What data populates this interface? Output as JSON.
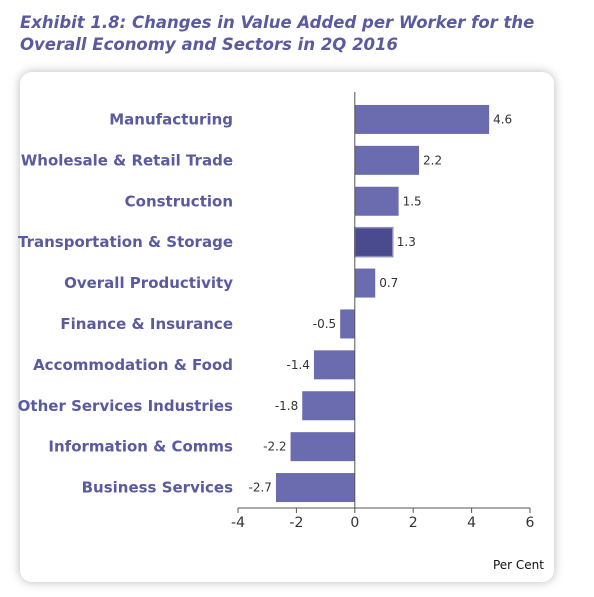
{
  "title": "Exhibit 1.8: Changes in Value Added per Worker for the Overall Economy and Sectors in 2Q 2016",
  "colors": {
    "bar": "#6b6bb0",
    "bar_highlight": "#4a4a8e",
    "label": "#5a5aa0",
    "axis": "#555555"
  },
  "chart_data": {
    "type": "bar",
    "orientation": "horizontal",
    "categories": [
      "Manufacturing",
      "Wholesale & Retail Trade",
      "Construction",
      "Transportation & Storage",
      "Overall Productivity",
      "Finance & Insurance",
      "Accommodation & Food",
      "Other Services Industries",
      "Information & Comms",
      "Business Services"
    ],
    "values": [
      4.6,
      2.2,
      1.5,
      1.3,
      0.7,
      -0.5,
      -1.4,
      -1.8,
      -2.2,
      -2.7
    ],
    "value_labels": [
      "4.6",
      "2.2",
      "1.5",
      "1.3",
      "0.7",
      "-0.5",
      "-1.4",
      "-1.8",
      "-2.2",
      "-2.7"
    ],
    "xlim": [
      -4,
      6
    ],
    "xticks": [
      -4,
      -2,
      0,
      2,
      4,
      6
    ],
    "xtick_labels": [
      "-4",
      "-2",
      "0",
      "2",
      "4",
      "6"
    ],
    "xlabel": "Per Cent",
    "grid": false,
    "legend": "none"
  }
}
